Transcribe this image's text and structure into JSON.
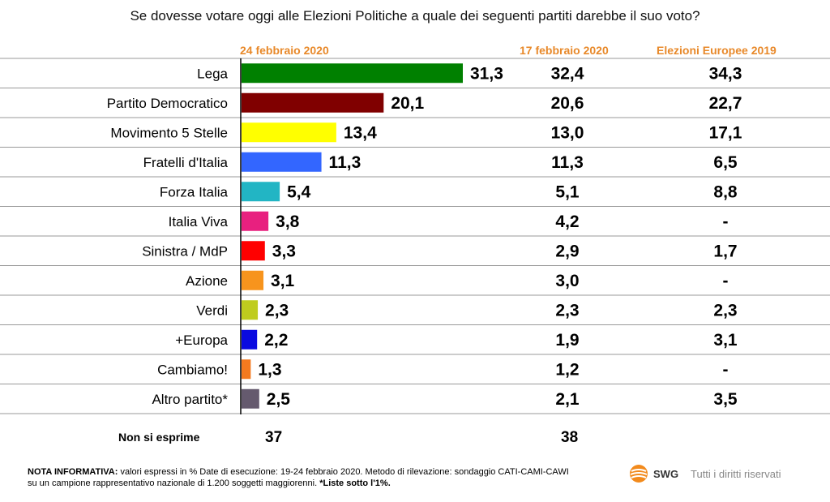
{
  "title": "Se dovesse votare oggi alle Elezioni Politiche a quale dei seguenti partiti darebbe il suo voto?",
  "columns": {
    "current": "24 febbraio 2020",
    "previous": "17 febbraio 2020",
    "europee": "Elezioni Europee 2019"
  },
  "chart_data": {
    "type": "bar",
    "orientation": "horizontal",
    "title": "Se dovesse votare oggi alle Elezioni Politiche a quale dei seguenti partiti darebbe il suo voto?",
    "categories": [
      "Lega",
      "Partito Democratico",
      "Movimento 5 Stelle",
      "Fratelli d'Italia",
      "Forza Italia",
      "Italia Viva",
      "Sinistra / MdP",
      "Azione",
      "Verdi",
      "+Europa",
      "Cambiamo!",
      "Altro partito*"
    ],
    "values": [
      31.3,
      20.1,
      13.4,
      11.3,
      5.4,
      3.8,
      3.3,
      3.1,
      2.3,
      2.2,
      1.3,
      2.5
    ],
    "value_labels": [
      "31,3",
      "20,1",
      "13,4",
      "11,3",
      "5,4",
      "3,8",
      "3,3",
      "3,1",
      "2,3",
      "2,2",
      "1,3",
      "2,5"
    ],
    "previous_labels": [
      "32,4",
      "20,6",
      "13,0",
      "11,3",
      "5,1",
      "4,2",
      "2,9",
      "3,0",
      "2,3",
      "1,9",
      "1,2",
      "2,1"
    ],
    "europee_labels": [
      "34,3",
      "22,7",
      "17,1",
      "6,5",
      "8,8",
      "-",
      "1,7",
      "-",
      "2,3",
      "3,1",
      "-",
      "3,5"
    ],
    "colors": [
      "#008000",
      "#800000",
      "#ffff00",
      "#3366ff",
      "#22b5c4",
      "#e8207f",
      "#ff0000",
      "#f7941d",
      "#bfcc1e",
      "#0a0ae0",
      "#f47a1f",
      "#655a6e"
    ],
    "grid": true,
    "legend": "none"
  },
  "non_si_esprime": {
    "label": "Non si esprime",
    "current": "37",
    "previous": "38"
  },
  "note": {
    "lead": "NOTA INFORMATIVA:",
    "text1": " valori espressi in % Date di esecuzione: 19-24 febbraio 2020. Metodo di rilevazione: sondaggio CATI-CAMI-CAWI",
    "text2": "su un campione rappresentativo nazionale di 1.200 soggetti maggiorenni. ",
    "bold_end": "*Liste sotto l'1%."
  },
  "brand": {
    "logo_text": "SWG",
    "rights": "Tutti i diritti riservati"
  }
}
